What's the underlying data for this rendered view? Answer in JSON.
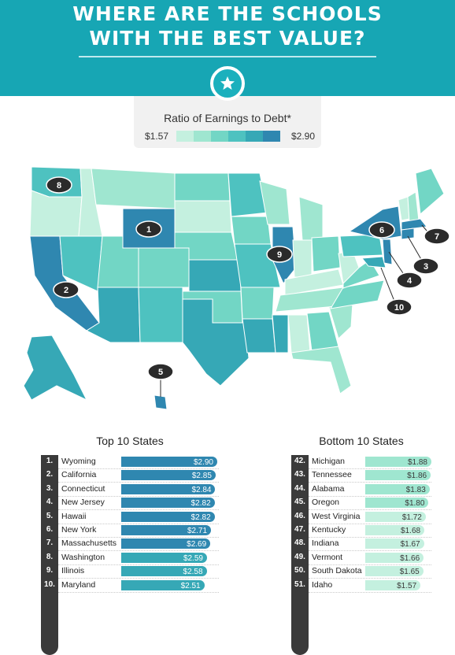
{
  "title": {
    "line1": "WHERE ARE THE SCHOOLS",
    "line2": "WITH THE BEST VALUE?"
  },
  "icons": {
    "badge": "star-icon"
  },
  "legend": {
    "title": "Ratio of Earnings to Debt*",
    "min": "$1.57",
    "max": "$2.90",
    "colors": [
      "#c4f0df",
      "#9fe6d0",
      "#72d6c5",
      "#4ec2c0",
      "#36a8b6",
      "#2f87b0"
    ]
  },
  "map_markers": [
    "1",
    "2",
    "3",
    "4",
    "5",
    "6",
    "7",
    "8",
    "9",
    "10"
  ],
  "top_panel": {
    "title": "Top 10 States"
  },
  "bottom_panel": {
    "title": "Bottom 10 States"
  },
  "chart_data": [
    {
      "type": "bar",
      "title": "Top 10 States",
      "ranks": [
        "1.",
        "2.",
        "3.",
        "4.",
        "5.",
        "6.",
        "7.",
        "8.",
        "9.",
        "10."
      ],
      "categories": [
        "Wyoming",
        "California",
        "Connecticut",
        "New Jersey",
        "Hawaii",
        "New York",
        "Massachusetts",
        "Washington",
        "Illinois",
        "Maryland"
      ],
      "values": [
        2.9,
        2.85,
        2.84,
        2.82,
        2.82,
        2.71,
        2.69,
        2.59,
        2.58,
        2.51
      ],
      "labels": [
        "$2.90",
        "$2.85",
        "$2.84",
        "$2.82",
        "$2.82",
        "$2.71",
        "$2.69",
        "$2.59",
        "$2.58",
        "$2.51"
      ],
      "colors": [
        "#2f87b0",
        "#2f87b0",
        "#2f87b0",
        "#2f87b0",
        "#2f87b0",
        "#2f87b0",
        "#2f87b0",
        "#36a8b6",
        "#36a8b6",
        "#36a8b6"
      ]
    },
    {
      "type": "bar",
      "title": "Bottom 10 States",
      "ranks": [
        "42.",
        "43.",
        "44.",
        "45.",
        "46.",
        "47.",
        "48.",
        "49.",
        "50.",
        "51."
      ],
      "categories": [
        "Michigan",
        "Tennessee",
        "Alabama",
        "Oregon",
        "West Virginia",
        "Kentucky",
        "Indiana",
        "Vermont",
        "South Dakota",
        "Idaho"
      ],
      "values": [
        1.88,
        1.86,
        1.83,
        1.8,
        1.72,
        1.68,
        1.67,
        1.66,
        1.65,
        1.57
      ],
      "labels": [
        "$1.88",
        "$1.86",
        "$1.83",
        "$1.80",
        "$1.72",
        "$1.68",
        "$1.67",
        "$1.66",
        "$1.65",
        "$1.57"
      ],
      "colors": [
        "#9fe6d0",
        "#9fe6d0",
        "#9fe6d0",
        "#9fe6d0",
        "#c4f0df",
        "#c4f0df",
        "#c4f0df",
        "#c4f0df",
        "#c4f0df",
        "#c4f0df"
      ]
    }
  ]
}
